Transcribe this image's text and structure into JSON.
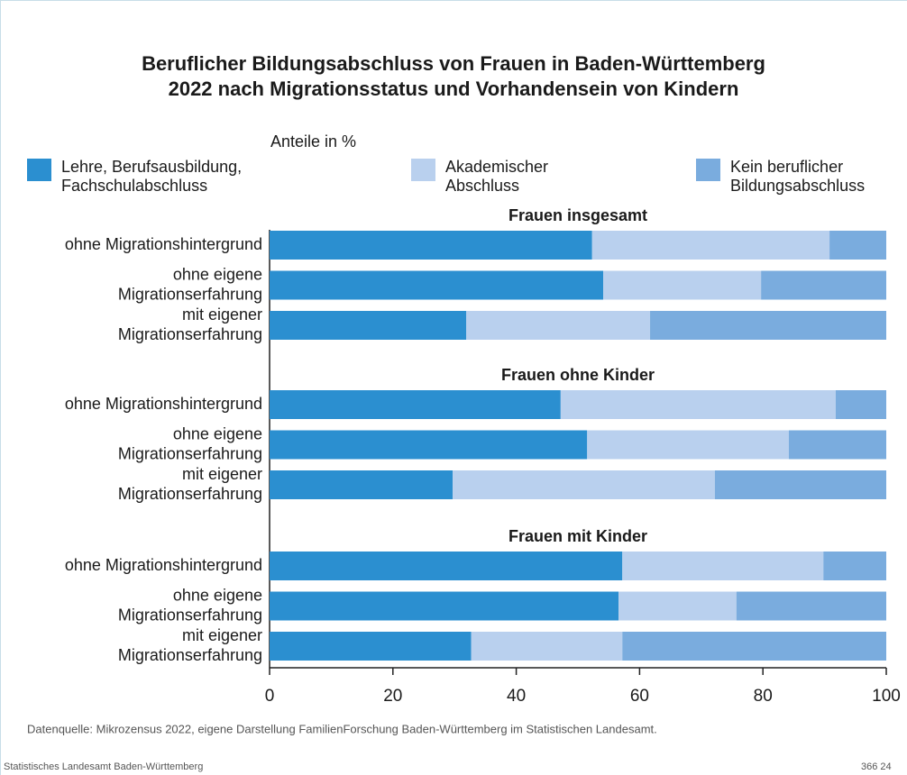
{
  "chart_data": {
    "type": "stacked_bar_h",
    "title": "Beruflicher Bildungsabschluss von Frauen  in Baden-Württemberg\n2022 nach Migrationsstatus und Vorhandensein von Kindern",
    "subtitle": "Anteile in %",
    "groups": [
      {
        "name": "Frauen insgesamt",
        "categories": [
          "ohne Migrationshintergrund",
          "ohne eigene\nMigrationserfahrung",
          "mit eigener\nMigrationserfahrung"
        ]
      },
      {
        "name": "Frauen ohne Kinder",
        "categories": [
          "ohne Migrationshintergrund",
          "ohne eigene\nMigrationserfahrung",
          "mit eigener\nMigrationserfahrung"
        ]
      },
      {
        "name": "Frauen mit Kinder",
        "categories": [
          "ohne Migrationshintergrund",
          "ohne eigene\nMigrationserfahrung",
          "mit eigener\nMigrationserfahrung"
        ]
      }
    ],
    "series": [
      {
        "name": "Lehre, Berufsausbildung,\nFachschulabschluss",
        "color": "#2b8fd0",
        "values": [
          [
            52.3,
            54.1,
            31.9
          ],
          [
            47.2,
            51.5,
            29.7
          ],
          [
            57.2,
            56.6,
            32.7
          ]
        ]
      },
      {
        "name": "Akademischer\nAbschluss",
        "color": "#b9d0ee",
        "values": [
          [
            38.5,
            25.6,
            29.8
          ],
          [
            44.6,
            32.7,
            42.5
          ],
          [
            32.6,
            19.1,
            24.5
          ]
        ]
      },
      {
        "name": "Kein beruflicher\nBildungsabschluss",
        "color": "#7aacde",
        "values": [
          [
            9.2,
            20.3,
            38.3
          ],
          [
            8.2,
            15.8,
            27.8
          ],
          [
            10.2,
            24.3,
            42.8
          ]
        ]
      }
    ],
    "xlim": [
      0,
      100
    ],
    "xticks": [
      0,
      20,
      40,
      60,
      80,
      100
    ],
    "source": "Datenquelle: Mikrozensus 2022, eigene Darstellung FamilienForschung Baden-Württemberg im Statistischen Landesamt.",
    "footer_left": "Statistisches Landesamt Baden-Württemberg",
    "footer_right": "366 24"
  }
}
